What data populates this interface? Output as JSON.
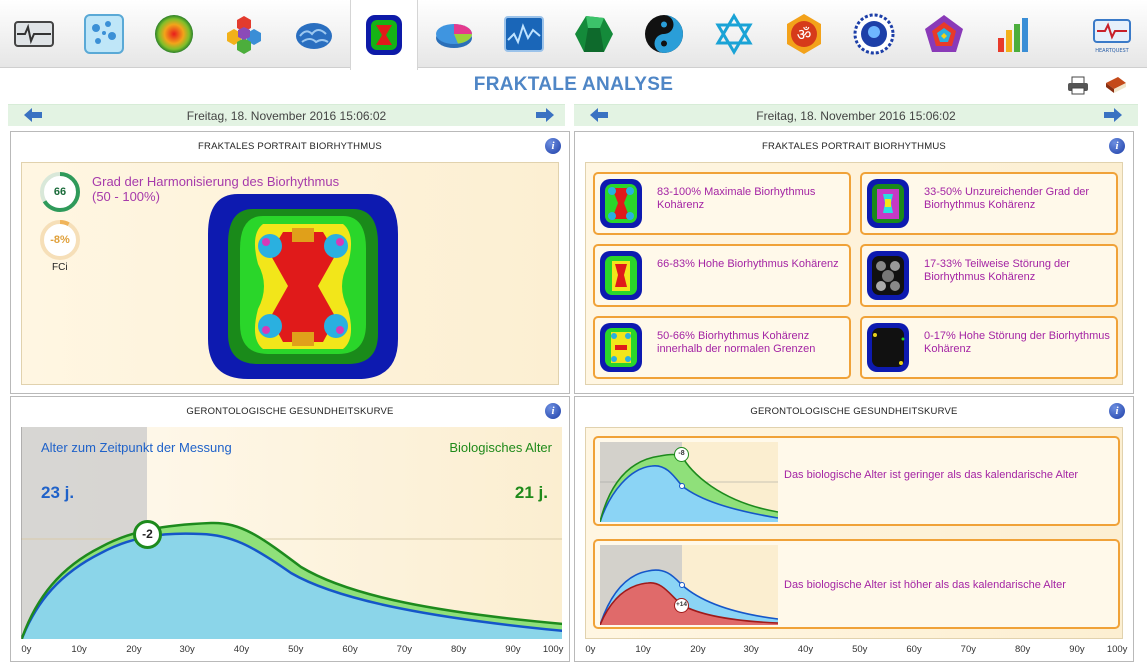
{
  "toolbar": {
    "items": [
      {
        "name": "ecg-monitor-icon"
      },
      {
        "name": "cell-analysis-icon"
      },
      {
        "name": "heat-sphere-icon"
      },
      {
        "name": "hexagon-cluster-icon"
      },
      {
        "name": "brain-icon"
      },
      {
        "name": "fractal-icon"
      },
      {
        "name": "pie-chart-icon"
      },
      {
        "name": "wave-monitor-icon"
      },
      {
        "name": "emerald-icon"
      },
      {
        "name": "yin-yang-icon"
      },
      {
        "name": "star-of-david-icon"
      },
      {
        "name": "om-icon"
      },
      {
        "name": "head-profile-icon"
      },
      {
        "name": "pentagon-diagram-icon"
      },
      {
        "name": "bar-graph-icon"
      }
    ],
    "active_index": 5,
    "logo_text": "HEARTQUEST"
  },
  "page": {
    "title": "FRAKTALE ANALYSE",
    "left_date": "Freitag, 18. November 2016 15:06:02",
    "right_date": "Freitag, 18. November 2016 15:06:02"
  },
  "panels": {
    "portrait_left": {
      "title": "FRAKTALES PORTRAIT BIORHYTHMUS",
      "info": "i",
      "harmonization_line1": "Grad der Harmonisierung des Biorhythmus",
      "harmonization_line2": "(50 - 100%)",
      "score": "66",
      "fci_value": "-8%",
      "fci_label": "FCi"
    },
    "portrait_right": {
      "title": "FRAKTALES PORTRAIT BIORHYTHMUS",
      "info": "i",
      "legend": [
        {
          "label": "83-100% Maximale Biorhythmus Kohärenz"
        },
        {
          "label": "33-50% Unzureichender Grad der Biorhythmus Kohärenz"
        },
        {
          "label": "66-83% Hohe Biorhythmus Kohärenz"
        },
        {
          "label": "17-33% Teilweise Störung der Biorhythmus Kohärenz"
        },
        {
          "label": "50-66% Biorhythmus Kohärenz innerhalb der normalen Grenzen"
        },
        {
          "label": "0-17% Hohe Störung der Biorhythmus Kohärenz"
        }
      ]
    },
    "curve_left": {
      "title": "GERONTOLOGISCHE GESUNDHEITSKURVE",
      "info": "i",
      "calendar_label": "Alter zum Zeitpunkt der Messung",
      "bio_label": "Biologisches Alter",
      "calendar_age": "23 j.",
      "bio_age": "21 j.",
      "difference": "-2"
    },
    "curve_right": {
      "title": "GERONTOLOGISCHE GESUNDHEITSKURVE",
      "info": "i",
      "example_lower": "Das biologische Alter ist geringer als das kalendarische Alter",
      "example_lower_badge": "-8",
      "example_higher": "Das biologische Alter ist höher als das kalendarische Alter",
      "example_higher_badge": "+14"
    }
  },
  "axis_ticks": [
    "0y",
    "10y",
    "20y",
    "30y",
    "40y",
    "50y",
    "60y",
    "70y",
    "80y",
    "90y",
    "100y"
  ],
  "colors": {
    "accent": "#4f86c6",
    "legend_text": "#a424a4",
    "calendar_blue": "#1f62c9",
    "bio_green": "#1f8a1a",
    "box_border": "#f0a238"
  }
}
